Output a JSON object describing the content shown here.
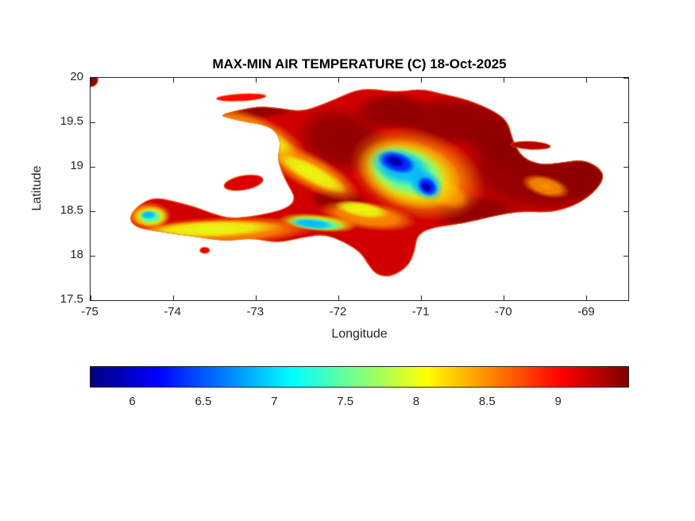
{
  "chart_data": {
    "type": "heatmap",
    "title": "MAX-MIN AIR TEMPERATURE (C) 18-Oct-2025",
    "xlabel": "Longitude",
    "ylabel": "Latitude",
    "xlim": [
      -75,
      -68.5
    ],
    "ylim": [
      17.5,
      20
    ],
    "xticks": [
      -75,
      -74,
      -73,
      -72,
      -71,
      -70,
      -69
    ],
    "yticks": [
      20,
      19.5,
      19,
      18.5,
      18,
      17.5
    ],
    "grid": false,
    "colormap": "jet",
    "value_min": 5.7,
    "value_max": 9.5,
    "colorbar": {
      "orientation": "horizontal",
      "position": "below-axes",
      "ticks": [
        6,
        6.5,
        7,
        7.5,
        8,
        8.5,
        9
      ]
    },
    "geography": "Hispaniola (Haiti / Dominican Republic)",
    "base_value": 9.2,
    "coast_value": 8.6,
    "main_outline": [
      [
        -73.45,
        19.58
      ],
      [
        -73.2,
        19.64
      ],
      [
        -72.95,
        19.68
      ],
      [
        -72.7,
        19.66
      ],
      [
        -72.45,
        19.62
      ],
      [
        -72.2,
        19.7
      ],
      [
        -71.95,
        19.8
      ],
      [
        -71.8,
        19.86
      ],
      [
        -71.62,
        19.88
      ],
      [
        -71.3,
        19.84
      ],
      [
        -71.0,
        19.88
      ],
      [
        -70.75,
        19.82
      ],
      [
        -70.45,
        19.76
      ],
      [
        -70.1,
        19.62
      ],
      [
        -69.95,
        19.5
      ],
      [
        -69.9,
        19.3
      ],
      [
        -69.78,
        19.1
      ],
      [
        -69.55,
        19.02
      ],
      [
        -69.3,
        19.05
      ],
      [
        -69.05,
        19.08
      ],
      [
        -68.86,
        19.0
      ],
      [
        -68.78,
        18.88
      ],
      [
        -68.92,
        18.7
      ],
      [
        -69.15,
        18.56
      ],
      [
        -69.45,
        18.48
      ],
      [
        -69.8,
        18.5
      ],
      [
        -70.15,
        18.44
      ],
      [
        -70.5,
        18.36
      ],
      [
        -70.85,
        18.32
      ],
      [
        -71.05,
        18.24
      ],
      [
        -71.08,
        18.04
      ],
      [
        -71.16,
        17.88
      ],
      [
        -71.36,
        17.76
      ],
      [
        -71.55,
        17.78
      ],
      [
        -71.66,
        17.92
      ],
      [
        -71.74,
        18.04
      ],
      [
        -71.95,
        18.16
      ],
      [
        -72.18,
        18.24
      ],
      [
        -72.45,
        18.2
      ],
      [
        -72.75,
        18.14
      ],
      [
        -73.05,
        18.2
      ],
      [
        -73.35,
        18.16
      ],
      [
        -73.65,
        18.2
      ],
      [
        -73.95,
        18.24
      ],
      [
        -74.25,
        18.28
      ],
      [
        -74.46,
        18.32
      ],
      [
        -74.54,
        18.42
      ],
      [
        -74.44,
        18.56
      ],
      [
        -74.24,
        18.66
      ],
      [
        -74.02,
        18.62
      ],
      [
        -73.76,
        18.56
      ],
      [
        -73.54,
        18.48
      ],
      [
        -73.32,
        18.42
      ],
      [
        -73.08,
        18.44
      ],
      [
        -72.84,
        18.48
      ],
      [
        -72.62,
        18.54
      ],
      [
        -72.52,
        18.64
      ],
      [
        -72.62,
        18.8
      ],
      [
        -72.7,
        18.96
      ],
      [
        -72.74,
        19.1
      ],
      [
        -72.7,
        19.28
      ],
      [
        -72.78,
        19.42
      ],
      [
        -72.95,
        19.48
      ],
      [
        -73.12,
        19.5
      ],
      [
        -73.3,
        19.54
      ]
    ],
    "islet_format": [
      "name",
      "lon",
      "lat",
      "rx_deg",
      "ry_deg",
      "rot_deg",
      "value"
    ],
    "islets": [
      [
        "tortuga",
        -73.18,
        19.78,
        0.3,
        0.04,
        -3,
        9.0
      ],
      [
        "gonave",
        -73.15,
        18.82,
        0.24,
        0.08,
        -10,
        9.15
      ],
      [
        "samana-sliver",
        -69.68,
        19.24,
        0.24,
        0.045,
        3,
        9.3
      ],
      [
        "ile-a-vache",
        -73.62,
        18.06,
        0.06,
        0.035,
        0,
        9.1
      ],
      [
        "nw-corner-patch",
        -74.99,
        19.98,
        0.08,
        0.08,
        0,
        9.4
      ]
    ],
    "feature_format": [
      "lon",
      "lat",
      "rx_deg",
      "ry_deg",
      "rot_deg",
      "value"
    ],
    "features": [
      [
        -69.55,
        18.95,
        1.05,
        0.52,
        5,
        9.45
      ],
      [
        -70.55,
        19.5,
        0.85,
        0.3,
        4,
        9.45
      ],
      [
        -71.95,
        19.3,
        0.6,
        0.38,
        15,
        9.45
      ],
      [
        -72.95,
        19.66,
        0.55,
        0.13,
        -6,
        9.45
      ],
      [
        -70.35,
        18.48,
        0.55,
        0.22,
        0,
        9.45
      ],
      [
        -68.98,
        18.9,
        0.38,
        0.34,
        0,
        9.45
      ],
      [
        -71.35,
        19.62,
        0.5,
        0.22,
        0,
        9.45
      ],
      [
        -72.0,
        18.62,
        0.38,
        0.14,
        5,
        9.45
      ],
      [
        -70.0,
        19.25,
        0.5,
        0.3,
        20,
        9.45
      ],
      [
        -73.05,
        19.38,
        0.7,
        0.22,
        22,
        8.45
      ],
      [
        -72.35,
        18.95,
        0.68,
        0.2,
        28,
        8.45
      ],
      [
        -73.4,
        18.28,
        1.15,
        0.16,
        -2,
        8.45
      ],
      [
        -71.05,
        18.92,
        0.85,
        0.5,
        18,
        8.45
      ],
      [
        -71.65,
        18.45,
        0.6,
        0.16,
        8,
        8.45
      ],
      [
        -70.7,
        18.7,
        0.3,
        0.15,
        25,
        8.45
      ],
      [
        -69.5,
        18.78,
        0.3,
        0.12,
        15,
        8.45
      ],
      [
        -74.3,
        18.45,
        0.28,
        0.16,
        0,
        8.45
      ],
      [
        -72.98,
        19.34,
        0.52,
        0.13,
        22,
        8.0
      ],
      [
        -72.33,
        18.93,
        0.5,
        0.11,
        28,
        8.0
      ],
      [
        -73.55,
        18.3,
        0.85,
        0.1,
        -2,
        8.0
      ],
      [
        -71.15,
        18.92,
        0.65,
        0.38,
        18,
        8.0
      ],
      [
        -72.25,
        18.37,
        0.48,
        0.1,
        6,
        8.0
      ],
      [
        -71.72,
        18.52,
        0.34,
        0.09,
        10,
        8.0
      ],
      [
        -74.27,
        18.44,
        0.22,
        0.12,
        0,
        8.0
      ],
      [
        -71.18,
        18.95,
        0.5,
        0.28,
        18,
        7.35
      ],
      [
        -72.28,
        18.36,
        0.36,
        0.075,
        6,
        7.35
      ],
      [
        -74.28,
        18.44,
        0.15,
        0.08,
        0,
        7.35
      ],
      [
        -72.95,
        19.32,
        0.25,
        0.06,
        22,
        7.35
      ],
      [
        -71.25,
        19.0,
        0.38,
        0.2,
        18,
        6.85
      ],
      [
        -70.95,
        18.8,
        0.24,
        0.16,
        35,
        6.85
      ],
      [
        -72.32,
        18.36,
        0.26,
        0.055,
        6,
        6.85
      ],
      [
        -74.3,
        18.46,
        0.1,
        0.05,
        0,
        6.85
      ],
      [
        -71.3,
        19.05,
        0.24,
        0.12,
        18,
        6.2
      ],
      [
        -70.93,
        18.78,
        0.14,
        0.1,
        40,
        6.2
      ],
      [
        -71.32,
        19.06,
        0.12,
        0.06,
        18,
        5.85
      ],
      [
        -70.94,
        18.77,
        0.07,
        0.05,
        40,
        5.85
      ]
    ]
  }
}
